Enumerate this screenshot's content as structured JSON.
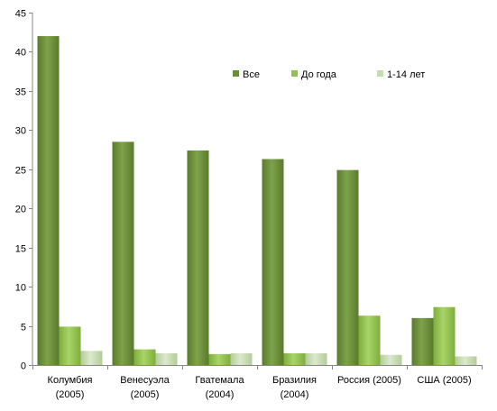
{
  "chart_data": {
    "type": "bar",
    "title": "",
    "xlabel": "",
    "ylabel": "",
    "ylim": [
      0,
      45
    ],
    "yticks": [
      0,
      5,
      10,
      15,
      20,
      25,
      30,
      35,
      40,
      45
    ],
    "grid": false,
    "legend_position": "top-right",
    "categories": [
      [
        "Колумбия",
        "(2005)"
      ],
      [
        "Венесуэла",
        "(2005)"
      ],
      [
        "Гватемала",
        "(2004)"
      ],
      [
        "Бразилия",
        "(2004)"
      ],
      [
        "Россия (2005)"
      ],
      [
        "США (2005)"
      ]
    ],
    "series": [
      {
        "name": "Все",
        "color": "#6a8f3a",
        "values": [
          42.0,
          28.5,
          27.4,
          26.3,
          24.9,
          6.0
        ]
      },
      {
        "name": "До года",
        "color": "#92c24e",
        "values": [
          4.9,
          2.0,
          1.4,
          1.5,
          6.3,
          7.4
        ]
      },
      {
        "name": "1-14 лет",
        "color": "#c7dcb0",
        "values": [
          1.8,
          1.5,
          1.5,
          1.5,
          1.3,
          1.1
        ]
      }
    ]
  }
}
